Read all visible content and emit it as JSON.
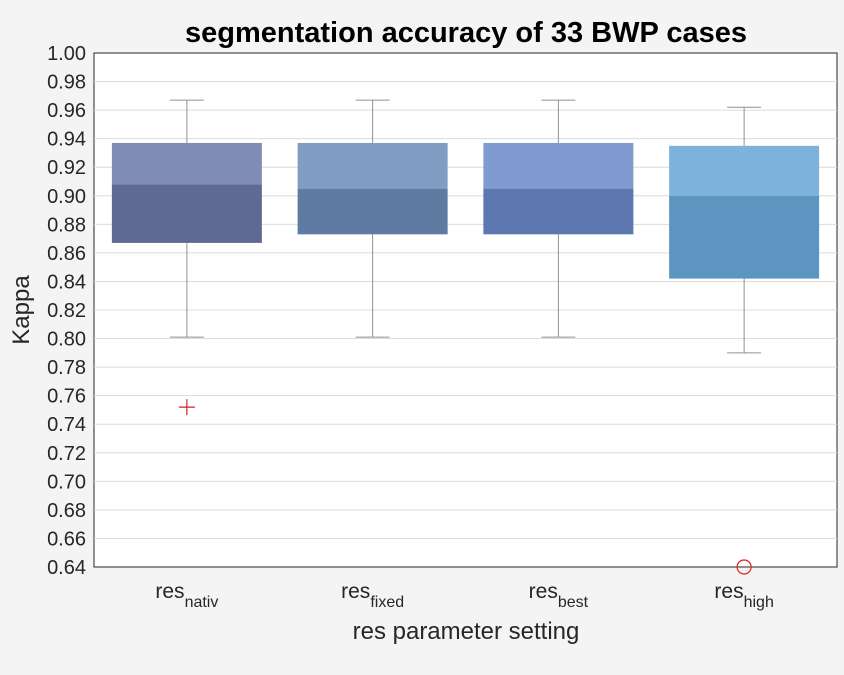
{
  "chart_data": {
    "type": "box",
    "title": "segmentation accuracy of 33 BWP cases",
    "xlabel": "res parameter setting",
    "ylabel": "Kappa",
    "ylim": [
      0.64,
      1.0
    ],
    "ytick_step": 0.02,
    "yticks": [
      "0.64",
      "0.66",
      "0.68",
      "0.70",
      "0.72",
      "0.74",
      "0.76",
      "0.78",
      "0.80",
      "0.82",
      "0.84",
      "0.86",
      "0.88",
      "0.90",
      "0.92",
      "0.94",
      "0.96",
      "0.98",
      "1.00"
    ],
    "grid": true,
    "categories": [
      {
        "base": "res",
        "sub": "nativ"
      },
      {
        "base": "res",
        "sub": "fixed"
      },
      {
        "base": "res",
        "sub": "best"
      },
      {
        "base": "res",
        "sub": "high"
      }
    ],
    "boxes": [
      {
        "whisker_low": 0.801,
        "q1": 0.867,
        "median": 0.908,
        "q3": 0.937,
        "whisker_high": 0.967,
        "upper_color": "#7f8db4",
        "lower_color": "#5e6a92",
        "outliers": [
          {
            "value": 0.752,
            "marker": "plus",
            "color": "#cc2222"
          }
        ]
      },
      {
        "whisker_low": 0.801,
        "q1": 0.873,
        "median": 0.905,
        "q3": 0.937,
        "whisker_high": 0.967,
        "upper_color": "#809ec4",
        "lower_color": "#5f7ba2",
        "outliers": []
      },
      {
        "whisker_low": 0.801,
        "q1": 0.873,
        "median": 0.905,
        "q3": 0.937,
        "whisker_high": 0.967,
        "upper_color": "#7f9bd0",
        "lower_color": "#5d78b0",
        "outliers": []
      },
      {
        "whisker_low": 0.79,
        "q1": 0.842,
        "median": 0.9,
        "q3": 0.935,
        "whisker_high": 0.962,
        "upper_color": "#7cb2dc",
        "lower_color": "#5c95bf",
        "outliers": [
          {
            "value": 0.64,
            "marker": "circle",
            "color": "#e02020"
          }
        ]
      }
    ]
  }
}
